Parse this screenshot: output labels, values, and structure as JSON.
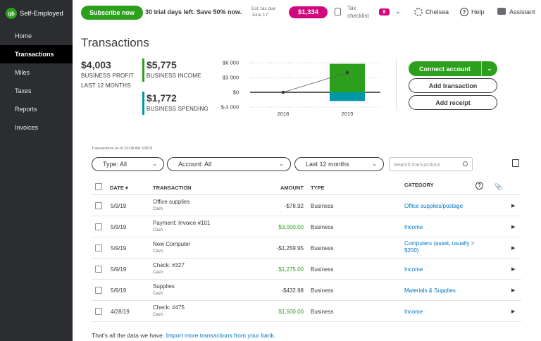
{
  "app": {
    "name": "Self-Employed",
    "logo_text": "qb"
  },
  "sidebar": {
    "items": [
      {
        "label": "Home",
        "active": false
      },
      {
        "label": "Transactions",
        "active": true
      },
      {
        "label": "Miles",
        "active": false
      },
      {
        "label": "Taxes",
        "active": false
      },
      {
        "label": "Reports",
        "active": false
      },
      {
        "label": "Invoices",
        "active": false
      }
    ]
  },
  "topbar": {
    "subscribe_label": "Subscribe now",
    "trial_text": "30 trial days left. Save 50% now.",
    "est_tax_label": "Est. tax due June 17:",
    "est_tax_amount": "$1,334",
    "checklist_label": "Tax checklist",
    "checklist_count": "8",
    "user_name": "Chelsea",
    "help_label": "Help",
    "assistant_label": "Assistant",
    "help_glyph": "?",
    "chevron_glyph": "⌄"
  },
  "page": {
    "title": "Transactions"
  },
  "summary": {
    "profit_value": "$4,003",
    "profit_label": "BUSINESS PROFIT",
    "profit_period": "LAST 12 MONTHS",
    "income_value": "$5,775",
    "income_label": "BUSINESS INCOME",
    "spending_value": "$1,772",
    "spending_label": "BUSINESS SPENDING"
  },
  "chart_data": {
    "type": "bar",
    "categories": [
      "2018",
      "2019"
    ],
    "series": [
      {
        "name": "Business income",
        "values": [
          0,
          5775
        ],
        "color": "#2ca01c"
      },
      {
        "name": "Business spending",
        "values": [
          0,
          -1772
        ],
        "color": "#0097a7"
      },
      {
        "name": "Business profit",
        "values": [
          0,
          4003
        ],
        "type": "line",
        "color": "#393a3d"
      }
    ],
    "y_tick_labels": [
      "$6 000",
      "$3 000",
      "$0",
      "$-3 000"
    ],
    "y_ticks": [
      6000,
      3000,
      0,
      -3000
    ],
    "ylim": [
      -3000,
      6000
    ],
    "grid": "dotted"
  },
  "actions": {
    "connect_label": "Connect account",
    "add_transaction_label": "Add transaction",
    "add_receipt_label": "Add receipt"
  },
  "as_of_text": "Transactions as of 10:08 AM 5/9/19",
  "filters": {
    "type_label": "Type: All",
    "account_label": "Account: All",
    "period_label": "Last 12 months",
    "search_placeholder": "Search transactions"
  },
  "table": {
    "headers": {
      "date": "DATE ▾",
      "transaction": "TRANSACTION",
      "amount": "AMOUNT",
      "type": "TYPE",
      "category": "CATEGORY"
    },
    "rows": [
      {
        "date": "5/9/19",
        "description": "Office supplies",
        "account": "Cash",
        "amount": "-$78.92",
        "positive": false,
        "type": "Business",
        "category": "Office supplies/postage"
      },
      {
        "date": "5/9/19",
        "description": "Payment: Invoice #101",
        "account": "Cash",
        "amount": "$3,000.00",
        "positive": true,
        "type": "Business",
        "category": "Income"
      },
      {
        "date": "5/9/19",
        "description": "New Computer",
        "account": "Cash",
        "amount": "-$1,259.95",
        "positive": false,
        "type": "Business",
        "category": "Computers (asset, usually > $200)"
      },
      {
        "date": "5/9/19",
        "description": "Check: #327",
        "account": "Cash",
        "amount": "$1,275.00",
        "positive": true,
        "type": "Business",
        "category": "Income"
      },
      {
        "date": "5/9/19",
        "description": "Supplies",
        "account": "Cash",
        "amount": "-$432.98",
        "positive": false,
        "type": "Business",
        "category": "Materials & Supplies"
      },
      {
        "date": "4/28/19",
        "description": "Check: #475",
        "account": "Cash",
        "amount": "$1,500.00",
        "positive": true,
        "type": "Business",
        "category": "Income"
      }
    ]
  },
  "footer": {
    "note": "That's all the data we have.",
    "link": "Import more transactions from your bank."
  },
  "colors": {
    "brand_green": "#2ca01c",
    "magenta": "#d1097d",
    "spending_teal": "#0097a7",
    "link_blue": "#0077c5",
    "positive_amount": "#2ca01c"
  }
}
